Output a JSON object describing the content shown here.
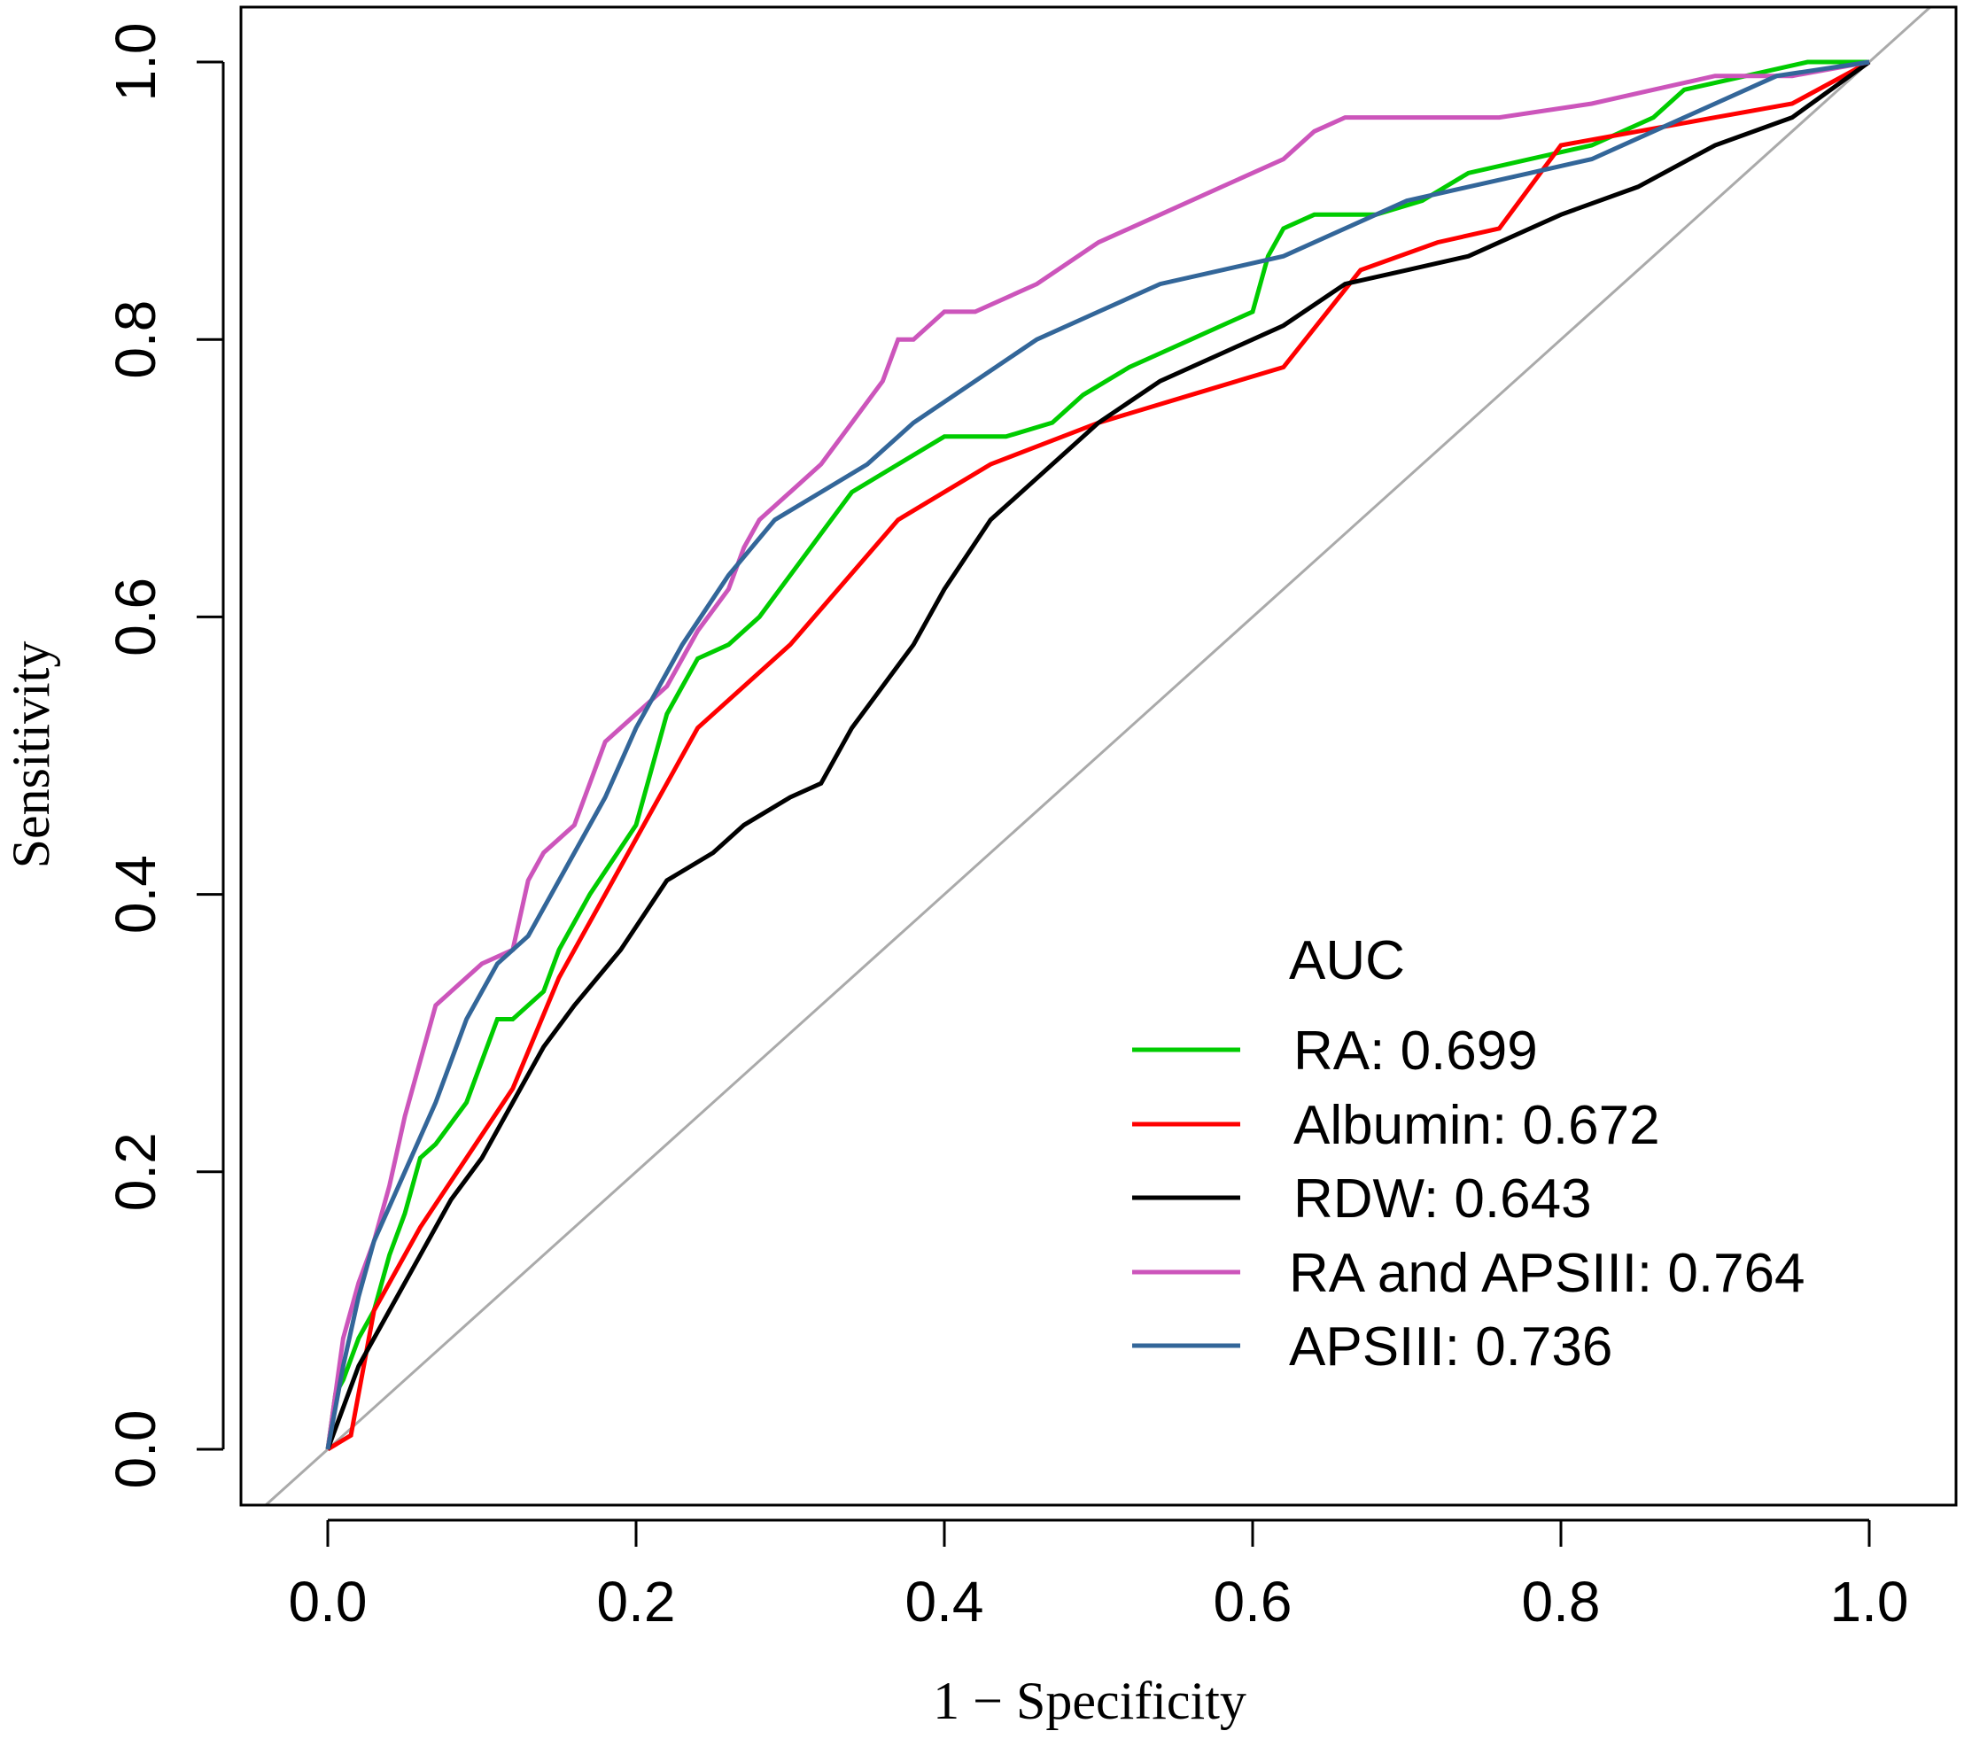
{
  "chart_data": {
    "type": "line",
    "title": "",
    "xlabel": "1 − Specificity",
    "ylabel": "Sensitivity",
    "xlim": [
      -0.04,
      1.04
    ],
    "ylim": [
      -0.04,
      1.04
    ],
    "x_ticks": [
      0.0,
      0.2,
      0.4,
      0.6,
      0.8,
      1.0
    ],
    "y_ticks": [
      0.0,
      0.2,
      0.4,
      0.6,
      0.8,
      1.0
    ],
    "x_tick_labels": [
      "0.0",
      "0.2",
      "0.4",
      "0.6",
      "0.8",
      "1.0"
    ],
    "y_tick_labels": [
      "0.0",
      "0.2",
      "0.4",
      "0.6",
      "0.8",
      "1.0"
    ],
    "grid": false,
    "legend": {
      "title": "AUC",
      "placement": "bottom-right"
    },
    "reference_line": {
      "name": "chance-diagonal",
      "color": "#aaaaaa",
      "x": [
        0,
        1
      ],
      "y": [
        0,
        1
      ]
    },
    "series": [
      {
        "name": "RA",
        "label": "RA: 0.699",
        "color": "#00cc00",
        "x": [
          0,
          0.005,
          0.01,
          0.02,
          0.03,
          0.04,
          0.05,
          0.06,
          0.07,
          0.09,
          0.1,
          0.11,
          0.12,
          0.14,
          0.15,
          0.17,
          0.2,
          0.22,
          0.24,
          0.26,
          0.28,
          0.3,
          0.32,
          0.34,
          0.37,
          0.4,
          0.44,
          0.47,
          0.49,
          0.52,
          0.54,
          0.56,
          0.58,
          0.6,
          0.61,
          0.62,
          0.64,
          0.68,
          0.71,
          0.74,
          0.78,
          0.82,
          0.86,
          0.88,
          0.92,
          0.96,
          1.0
        ],
        "y": [
          0,
          0.04,
          0.05,
          0.08,
          0.1,
          0.14,
          0.17,
          0.21,
          0.22,
          0.25,
          0.28,
          0.31,
          0.31,
          0.33,
          0.36,
          0.4,
          0.45,
          0.53,
          0.57,
          0.58,
          0.6,
          0.63,
          0.66,
          0.69,
          0.71,
          0.73,
          0.73,
          0.74,
          0.76,
          0.78,
          0.79,
          0.8,
          0.81,
          0.82,
          0.86,
          0.88,
          0.89,
          0.89,
          0.9,
          0.92,
          0.93,
          0.94,
          0.96,
          0.98,
          0.99,
          1.0,
          1.0
        ]
      },
      {
        "name": "Albumin",
        "label": "Albumin: 0.672",
        "color": "#ff0000",
        "x": [
          0,
          0.015,
          0.03,
          0.06,
          0.09,
          0.12,
          0.15,
          0.2,
          0.24,
          0.3,
          0.37,
          0.43,
          0.5,
          0.56,
          0.62,
          0.67,
          0.72,
          0.76,
          0.8,
          0.85,
          0.9,
          0.95,
          1.0
        ],
        "y": [
          0,
          0.01,
          0.1,
          0.16,
          0.21,
          0.26,
          0.34,
          0.44,
          0.52,
          0.58,
          0.67,
          0.71,
          0.74,
          0.76,
          0.78,
          0.85,
          0.87,
          0.88,
          0.94,
          0.95,
          0.96,
          0.97,
          1.0
        ]
      },
      {
        "name": "RDW",
        "label": "RDW: 0.643",
        "color": "#000000",
        "x": [
          0,
          0.02,
          0.04,
          0.06,
          0.08,
          0.1,
          0.12,
          0.14,
          0.16,
          0.19,
          0.22,
          0.25,
          0.27,
          0.3,
          0.32,
          0.34,
          0.36,
          0.38,
          0.4,
          0.43,
          0.46,
          0.5,
          0.54,
          0.58,
          0.62,
          0.66,
          0.7,
          0.74,
          0.8,
          0.85,
          0.9,
          0.95,
          1.0
        ],
        "y": [
          0,
          0.06,
          0.1,
          0.14,
          0.18,
          0.21,
          0.25,
          0.29,
          0.32,
          0.36,
          0.41,
          0.43,
          0.45,
          0.47,
          0.48,
          0.52,
          0.55,
          0.58,
          0.62,
          0.67,
          0.7,
          0.74,
          0.77,
          0.79,
          0.81,
          0.84,
          0.85,
          0.86,
          0.89,
          0.91,
          0.94,
          0.96,
          1.0
        ]
      },
      {
        "name": "RA and APSIII",
        "label": "RA and APSIII: 0.764",
        "color": "#cc55bb",
        "x": [
          0,
          0.01,
          0.02,
          0.03,
          0.04,
          0.05,
          0.06,
          0.07,
          0.08,
          0.1,
          0.12,
          0.13,
          0.14,
          0.16,
          0.18,
          0.2,
          0.22,
          0.24,
          0.26,
          0.27,
          0.28,
          0.3,
          0.32,
          0.34,
          0.36,
          0.37,
          0.38,
          0.4,
          0.42,
          0.46,
          0.5,
          0.54,
          0.58,
          0.62,
          0.64,
          0.66,
          0.7,
          0.76,
          0.82,
          0.86,
          0.9,
          0.95,
          1.0
        ],
        "y": [
          0,
          0.08,
          0.12,
          0.15,
          0.19,
          0.24,
          0.28,
          0.32,
          0.33,
          0.35,
          0.36,
          0.41,
          0.43,
          0.45,
          0.51,
          0.53,
          0.55,
          0.59,
          0.62,
          0.65,
          0.67,
          0.69,
          0.71,
          0.74,
          0.77,
          0.8,
          0.8,
          0.82,
          0.82,
          0.84,
          0.87,
          0.89,
          0.91,
          0.93,
          0.95,
          0.96,
          0.96,
          0.96,
          0.97,
          0.98,
          0.99,
          0.99,
          1.0
        ]
      },
      {
        "name": "APSIII",
        "label": "APSIII: 0.736",
        "color": "#336699",
        "x": [
          0,
          0.01,
          0.02,
          0.03,
          0.05,
          0.07,
          0.09,
          0.11,
          0.13,
          0.15,
          0.18,
          0.2,
          0.23,
          0.26,
          0.29,
          0.32,
          0.35,
          0.38,
          0.42,
          0.46,
          0.5,
          0.54,
          0.58,
          0.62,
          0.66,
          0.7,
          0.74,
          0.78,
          0.82,
          0.86,
          0.9,
          0.94,
          1.0
        ],
        "y": [
          0,
          0.06,
          0.11,
          0.15,
          0.2,
          0.25,
          0.31,
          0.35,
          0.37,
          0.41,
          0.47,
          0.52,
          0.58,
          0.63,
          0.67,
          0.69,
          0.71,
          0.74,
          0.77,
          0.8,
          0.82,
          0.84,
          0.85,
          0.86,
          0.88,
          0.9,
          0.91,
          0.92,
          0.93,
          0.95,
          0.97,
          0.99,
          1.0
        ]
      }
    ]
  }
}
